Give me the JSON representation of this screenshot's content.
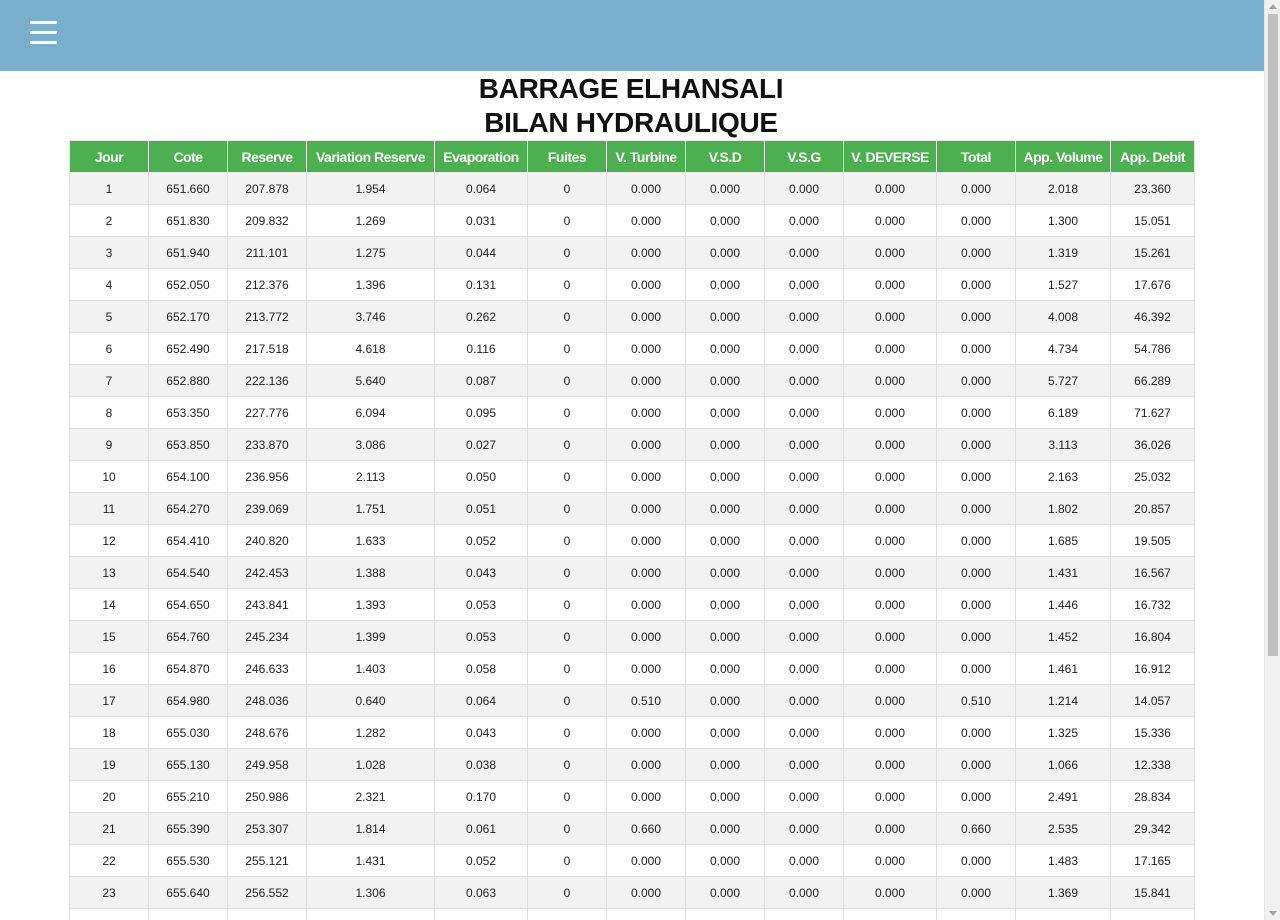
{
  "header": {
    "menu_icon": "hamburger-menu-icon",
    "bar_color": "#79afcc"
  },
  "title": {
    "line1": "BARRAGE ELHANSALI",
    "line2": "BILAN HYDRAULIQUE"
  },
  "table": {
    "header_color": "#4caf50",
    "columns": [
      "Jour",
      "Cote",
      "Reserve",
      "Variation Reserve",
      "Evaporation",
      "Fuites",
      "V. Turbine",
      "V.S.D",
      "V.S.G",
      "V. DEVERSE",
      "Total",
      "App. Volume",
      "App. Debit"
    ],
    "rows": [
      [
        "1",
        "651.660",
        "207.878",
        "1.954",
        "0.064",
        "0",
        "0.000",
        "0.000",
        "0.000",
        "0.000",
        "0.000",
        "2.018",
        "23.360"
      ],
      [
        "2",
        "651.830",
        "209.832",
        "1.269",
        "0.031",
        "0",
        "0.000",
        "0.000",
        "0.000",
        "0.000",
        "0.000",
        "1.300",
        "15.051"
      ],
      [
        "3",
        "651.940",
        "211.101",
        "1.275",
        "0.044",
        "0",
        "0.000",
        "0.000",
        "0.000",
        "0.000",
        "0.000",
        "1.319",
        "15.261"
      ],
      [
        "4",
        "652.050",
        "212.376",
        "1.396",
        "0.131",
        "0",
        "0.000",
        "0.000",
        "0.000",
        "0.000",
        "0.000",
        "1.527",
        "17.676"
      ],
      [
        "5",
        "652.170",
        "213.772",
        "3.746",
        "0.262",
        "0",
        "0.000",
        "0.000",
        "0.000",
        "0.000",
        "0.000",
        "4.008",
        "46.392"
      ],
      [
        "6",
        "652.490",
        "217.518",
        "4.618",
        "0.116",
        "0",
        "0.000",
        "0.000",
        "0.000",
        "0.000",
        "0.000",
        "4.734",
        "54.786"
      ],
      [
        "7",
        "652.880",
        "222.136",
        "5.640",
        "0.087",
        "0",
        "0.000",
        "0.000",
        "0.000",
        "0.000",
        "0.000",
        "5.727",
        "66.289"
      ],
      [
        "8",
        "653.350",
        "227.776",
        "6.094",
        "0.095",
        "0",
        "0.000",
        "0.000",
        "0.000",
        "0.000",
        "0.000",
        "6.189",
        "71.627"
      ],
      [
        "9",
        "653.850",
        "233.870",
        "3.086",
        "0.027",
        "0",
        "0.000",
        "0.000",
        "0.000",
        "0.000",
        "0.000",
        "3.113",
        "36.026"
      ],
      [
        "10",
        "654.100",
        "236.956",
        "2.113",
        "0.050",
        "0",
        "0.000",
        "0.000",
        "0.000",
        "0.000",
        "0.000",
        "2.163",
        "25.032"
      ],
      [
        "11",
        "654.270",
        "239.069",
        "1.751",
        "0.051",
        "0",
        "0.000",
        "0.000",
        "0.000",
        "0.000",
        "0.000",
        "1.802",
        "20.857"
      ],
      [
        "12",
        "654.410",
        "240.820",
        "1.633",
        "0.052",
        "0",
        "0.000",
        "0.000",
        "0.000",
        "0.000",
        "0.000",
        "1.685",
        "19.505"
      ],
      [
        "13",
        "654.540",
        "242.453",
        "1.388",
        "0.043",
        "0",
        "0.000",
        "0.000",
        "0.000",
        "0.000",
        "0.000",
        "1.431",
        "16.567"
      ],
      [
        "14",
        "654.650",
        "243.841",
        "1.393",
        "0.053",
        "0",
        "0.000",
        "0.000",
        "0.000",
        "0.000",
        "0.000",
        "1.446",
        "16.732"
      ],
      [
        "15",
        "654.760",
        "245.234",
        "1.399",
        "0.053",
        "0",
        "0.000",
        "0.000",
        "0.000",
        "0.000",
        "0.000",
        "1.452",
        "16.804"
      ],
      [
        "16",
        "654.870",
        "246.633",
        "1.403",
        "0.058",
        "0",
        "0.000",
        "0.000",
        "0.000",
        "0.000",
        "0.000",
        "1.461",
        "16.912"
      ],
      [
        "17",
        "654.980",
        "248.036",
        "0.640",
        "0.064",
        "0",
        "0.510",
        "0.000",
        "0.000",
        "0.000",
        "0.510",
        "1.214",
        "14.057"
      ],
      [
        "18",
        "655.030",
        "248.676",
        "1.282",
        "0.043",
        "0",
        "0.000",
        "0.000",
        "0.000",
        "0.000",
        "0.000",
        "1.325",
        "15.336"
      ],
      [
        "19",
        "655.130",
        "249.958",
        "1.028",
        "0.038",
        "0",
        "0.000",
        "0.000",
        "0.000",
        "0.000",
        "0.000",
        "1.066",
        "12.338"
      ],
      [
        "20",
        "655.210",
        "250.986",
        "2.321",
        "0.170",
        "0",
        "0.000",
        "0.000",
        "0.000",
        "0.000",
        "0.000",
        "2.491",
        "28.834"
      ],
      [
        "21",
        "655.390",
        "253.307",
        "1.814",
        "0.061",
        "0",
        "0.660",
        "0.000",
        "0.000",
        "0.000",
        "0.660",
        "2.535",
        "29.342"
      ],
      [
        "22",
        "655.530",
        "255.121",
        "1.431",
        "0.052",
        "0",
        "0.000",
        "0.000",
        "0.000",
        "0.000",
        "0.000",
        "1.483",
        "17.165"
      ],
      [
        "23",
        "655.640",
        "256.552",
        "1.306",
        "0.063",
        "0",
        "0.000",
        "0.000",
        "0.000",
        "0.000",
        "0.000",
        "1.369",
        "15.841"
      ],
      [
        "",
        "",
        "",
        "",
        "",
        "",
        "",
        "",
        "",
        "",
        "",
        "",
        ""
      ]
    ]
  }
}
